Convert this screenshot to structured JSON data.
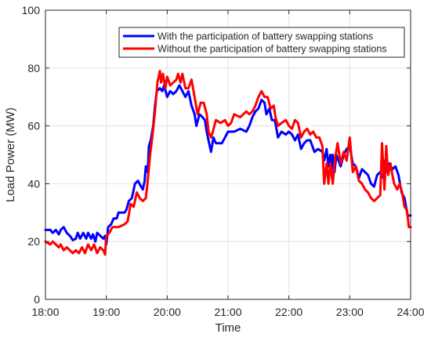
{
  "chart_data": {
    "type": "line",
    "xlabel": "Time",
    "ylabel": "Load Power (MW)",
    "xlim": [
      18,
      24
    ],
    "ylim": [
      0,
      100
    ],
    "x_ticks": [
      18,
      19,
      20,
      21,
      22,
      23,
      24
    ],
    "x_tick_labels": [
      "18:00",
      "19:00",
      "20:00",
      "21:00",
      "22:00",
      "23:00",
      "24:00"
    ],
    "y_ticks": [
      0,
      20,
      40,
      60,
      80,
      100
    ],
    "y_tick_labels": [
      "0",
      "20",
      "40",
      "60",
      "80",
      "100"
    ],
    "grid": true,
    "legend_position": "top-right",
    "series": [
      {
        "name": "With the participation of battery swapping stations",
        "color": "#0000ff",
        "points": [
          [
            18.0,
            24
          ],
          [
            18.08,
            24
          ],
          [
            18.12,
            23
          ],
          [
            18.17,
            24
          ],
          [
            18.22,
            22.5
          ],
          [
            18.25,
            24
          ],
          [
            18.3,
            25
          ],
          [
            18.35,
            23
          ],
          [
            18.4,
            22
          ],
          [
            18.45,
            20.5
          ],
          [
            18.5,
            21
          ],
          [
            18.53,
            23
          ],
          [
            18.57,
            21
          ],
          [
            18.62,
            23
          ],
          [
            18.67,
            21
          ],
          [
            18.7,
            23
          ],
          [
            18.75,
            21
          ],
          [
            18.78,
            22.5
          ],
          [
            18.82,
            20
          ],
          [
            18.85,
            23
          ],
          [
            18.9,
            22
          ],
          [
            18.95,
            21
          ],
          [
            18.98,
            22
          ],
          [
            19.0,
            19
          ],
          [
            19.03,
            25
          ],
          [
            19.08,
            26
          ],
          [
            19.12,
            28
          ],
          [
            19.17,
            28
          ],
          [
            19.2,
            30
          ],
          [
            19.25,
            30
          ],
          [
            19.3,
            30
          ],
          [
            19.33,
            31
          ],
          [
            19.37,
            34
          ],
          [
            19.42,
            35
          ],
          [
            19.47,
            40
          ],
          [
            19.52,
            41
          ],
          [
            19.57,
            39
          ],
          [
            19.6,
            38
          ],
          [
            19.63,
            41
          ],
          [
            19.65,
            46
          ],
          [
            19.68,
            44
          ],
          [
            19.7,
            53
          ],
          [
            19.73,
            55
          ],
          [
            19.77,
            60
          ],
          [
            19.8,
            67
          ],
          [
            19.83,
            72
          ],
          [
            19.88,
            73
          ],
          [
            19.92,
            72
          ],
          [
            19.95,
            74
          ],
          [
            20.0,
            70
          ],
          [
            20.05,
            72
          ],
          [
            20.1,
            71
          ],
          [
            20.15,
            72
          ],
          [
            20.2,
            74
          ],
          [
            20.25,
            72
          ],
          [
            20.3,
            70
          ],
          [
            20.35,
            72
          ],
          [
            20.4,
            67
          ],
          [
            20.45,
            64
          ],
          [
            20.48,
            60
          ],
          [
            20.53,
            64
          ],
          [
            20.58,
            63
          ],
          [
            20.62,
            62
          ],
          [
            20.65,
            58
          ],
          [
            20.68,
            55
          ],
          [
            20.72,
            51
          ],
          [
            20.76,
            56
          ],
          [
            20.8,
            54
          ],
          [
            20.9,
            54
          ],
          [
            20.95,
            56
          ],
          [
            21.0,
            58
          ],
          [
            21.1,
            58
          ],
          [
            21.2,
            59
          ],
          [
            21.3,
            58
          ],
          [
            21.35,
            60
          ],
          [
            21.4,
            63
          ],
          [
            21.45,
            65
          ],
          [
            21.5,
            66
          ],
          [
            21.55,
            69
          ],
          [
            21.6,
            68
          ],
          [
            21.63,
            64
          ],
          [
            21.68,
            66
          ],
          [
            21.72,
            62
          ],
          [
            21.77,
            62
          ],
          [
            21.82,
            56
          ],
          [
            21.88,
            58
          ],
          [
            21.95,
            57
          ],
          [
            22.0,
            58
          ],
          [
            22.05,
            57
          ],
          [
            22.1,
            55
          ],
          [
            22.15,
            57
          ],
          [
            22.2,
            52
          ],
          [
            22.25,
            54
          ],
          [
            22.3,
            55
          ],
          [
            22.35,
            55
          ],
          [
            22.42,
            51
          ],
          [
            22.48,
            52
          ],
          [
            22.55,
            51
          ],
          [
            22.58,
            48
          ],
          [
            22.62,
            52
          ],
          [
            22.65,
            46
          ],
          [
            22.68,
            50
          ],
          [
            22.7,
            44
          ],
          [
            22.72,
            50
          ],
          [
            22.75,
            44
          ],
          [
            22.78,
            50
          ],
          [
            22.85,
            46
          ],
          [
            22.9,
            50
          ],
          [
            22.95,
            52
          ],
          [
            23.0,
            53
          ],
          [
            23.05,
            47
          ],
          [
            23.1,
            46
          ],
          [
            23.15,
            42
          ],
          [
            23.2,
            45
          ],
          [
            23.25,
            44
          ],
          [
            23.3,
            43
          ],
          [
            23.35,
            40
          ],
          [
            23.4,
            39
          ],
          [
            23.45,
            43
          ],
          [
            23.5,
            44
          ],
          [
            23.55,
            42
          ],
          [
            23.58,
            48
          ],
          [
            23.62,
            44
          ],
          [
            23.65,
            47
          ],
          [
            23.7,
            45
          ],
          [
            23.75,
            46
          ],
          [
            23.8,
            43
          ],
          [
            23.85,
            37
          ],
          [
            23.9,
            35
          ],
          [
            23.95,
            29
          ],
          [
            24.0,
            29
          ]
        ]
      },
      {
        "name": "Without the participation of battery swapping stations",
        "color": "#ff0000",
        "points": [
          [
            18.0,
            20
          ],
          [
            18.08,
            19
          ],
          [
            18.12,
            20
          ],
          [
            18.17,
            19
          ],
          [
            18.22,
            18
          ],
          [
            18.25,
            19
          ],
          [
            18.3,
            17
          ],
          [
            18.35,
            18
          ],
          [
            18.4,
            17
          ],
          [
            18.45,
            16
          ],
          [
            18.5,
            17
          ],
          [
            18.55,
            16
          ],
          [
            18.6,
            18
          ],
          [
            18.65,
            16
          ],
          [
            18.7,
            19
          ],
          [
            18.75,
            17
          ],
          [
            18.8,
            19
          ],
          [
            18.85,
            16
          ],
          [
            18.9,
            18
          ],
          [
            18.95,
            17
          ],
          [
            18.98,
            15.5
          ],
          [
            19.0,
            22
          ],
          [
            19.05,
            23
          ],
          [
            19.1,
            25
          ],
          [
            19.2,
            25
          ],
          [
            19.3,
            26
          ],
          [
            19.35,
            27
          ],
          [
            19.4,
            33
          ],
          [
            19.45,
            32
          ],
          [
            19.5,
            37
          ],
          [
            19.55,
            35
          ],
          [
            19.6,
            34
          ],
          [
            19.65,
            35
          ],
          [
            19.68,
            41
          ],
          [
            19.72,
            50
          ],
          [
            19.76,
            57
          ],
          [
            19.8,
            65
          ],
          [
            19.84,
            75
          ],
          [
            19.88,
            79
          ],
          [
            19.9,
            75
          ],
          [
            19.93,
            78
          ],
          [
            19.97,
            73
          ],
          [
            20.0,
            77
          ],
          [
            20.05,
            74
          ],
          [
            20.1,
            75
          ],
          [
            20.15,
            76
          ],
          [
            20.18,
            78
          ],
          [
            20.22,
            75
          ],
          [
            20.25,
            78
          ],
          [
            20.3,
            73
          ],
          [
            20.35,
            73
          ],
          [
            20.4,
            76
          ],
          [
            20.45,
            70
          ],
          [
            20.5,
            64
          ],
          [
            20.55,
            68
          ],
          [
            20.6,
            68
          ],
          [
            20.65,
            64
          ],
          [
            20.68,
            58
          ],
          [
            20.72,
            56
          ],
          [
            20.75,
            58
          ],
          [
            20.8,
            62
          ],
          [
            20.88,
            61
          ],
          [
            20.95,
            62
          ],
          [
            21.0,
            60
          ],
          [
            21.05,
            61
          ],
          [
            21.1,
            64
          ],
          [
            21.2,
            63
          ],
          [
            21.3,
            65
          ],
          [
            21.35,
            64
          ],
          [
            21.4,
            65
          ],
          [
            21.45,
            67
          ],
          [
            21.5,
            70
          ],
          [
            21.55,
            72
          ],
          [
            21.6,
            70
          ],
          [
            21.65,
            70
          ],
          [
            21.7,
            66
          ],
          [
            21.75,
            67
          ],
          [
            21.78,
            63
          ],
          [
            21.82,
            60
          ],
          [
            21.88,
            61
          ],
          [
            21.95,
            62
          ],
          [
            22.0,
            60
          ],
          [
            22.05,
            59
          ],
          [
            22.1,
            62
          ],
          [
            22.15,
            61
          ],
          [
            22.2,
            56
          ],
          [
            22.25,
            58
          ],
          [
            22.3,
            59
          ],
          [
            22.35,
            57
          ],
          [
            22.4,
            58
          ],
          [
            22.45,
            56
          ],
          [
            22.5,
            56
          ],
          [
            22.55,
            53
          ],
          [
            22.58,
            40
          ],
          [
            22.62,
            47
          ],
          [
            22.65,
            40
          ],
          [
            22.68,
            47
          ],
          [
            22.72,
            40
          ],
          [
            22.76,
            49
          ],
          [
            22.8,
            54
          ],
          [
            22.85,
            47
          ],
          [
            22.9,
            51
          ],
          [
            22.95,
            48
          ],
          [
            23.0,
            56
          ],
          [
            23.05,
            44
          ],
          [
            23.1,
            46
          ],
          [
            23.15,
            41
          ],
          [
            23.2,
            40
          ],
          [
            23.25,
            38
          ],
          [
            23.3,
            37
          ],
          [
            23.35,
            35
          ],
          [
            23.4,
            34
          ],
          [
            23.45,
            35
          ],
          [
            23.5,
            36
          ],
          [
            23.53,
            54
          ],
          [
            23.57,
            38
          ],
          [
            23.6,
            53
          ],
          [
            23.63,
            43
          ],
          [
            23.67,
            47
          ],
          [
            23.7,
            43
          ],
          [
            23.73,
            40
          ],
          [
            23.78,
            38
          ],
          [
            23.82,
            40
          ],
          [
            23.86,
            37
          ],
          [
            23.9,
            32
          ],
          [
            23.94,
            31
          ],
          [
            23.97,
            25
          ],
          [
            24.0,
            25
          ]
        ]
      }
    ]
  }
}
